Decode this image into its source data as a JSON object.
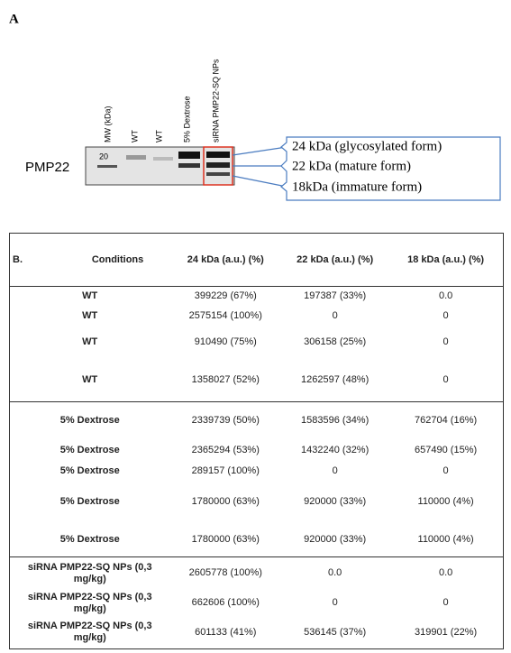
{
  "panel_a": {
    "label": "A",
    "protein": "PMP22",
    "marker": "20",
    "lanes": [
      "MW (kDa)",
      "WT",
      "WT",
      "5% Dextrose",
      "siRNA PMP22-SQ NPs"
    ],
    "annotations": [
      "24 kDa (glycosylated form)",
      "22 kDa (mature form)",
      "18kDa (immature form)"
    ]
  },
  "table": {
    "headers": [
      "B.",
      "Conditions",
      "24 kDa (a.u.) (%)",
      "22 kDa (a.u.) (%)",
      "18 kDa (a.u.) (%)"
    ],
    "groups": [
      {
        "rows": [
          [
            "WT",
            "399229 (67%)",
            "197387 (33%)",
            "0.0"
          ],
          [
            "WT",
            "2575154 (100%)",
            "0",
            "0"
          ],
          [
            "WT",
            "910490 (75%)",
            "306158 (25%)",
            "0"
          ],
          [
            "WT",
            "1358027 (52%)",
            "1262597 (48%)",
            "0"
          ]
        ]
      },
      {
        "rows": [
          [
            "5% Dextrose",
            "2339739 (50%)",
            "1583596 (34%)",
            "762704 (16%)"
          ],
          [
            "5% Dextrose",
            "2365294 (53%)",
            "1432240 (32%)",
            "657490 (15%)"
          ],
          [
            "5% Dextrose",
            "289157 (100%)",
            "0",
            "0"
          ],
          [
            "5% Dextrose",
            "1780000 (63%)",
            "920000 (33%)",
            "110000 (4%)"
          ],
          [
            "5% Dextrose",
            "1780000 (63%)",
            "920000 (33%)",
            "110000 (4%)"
          ]
        ]
      },
      {
        "rows": [
          [
            "siRNA PMP22-SQ NPs (0,3 mg/kg)",
            "2605778 (100%)",
            "0.0",
            "0.0"
          ],
          [
            "siRNA PMP22-SQ NPs (0,3 mg/kg)",
            "662606 (100%)",
            "0",
            "0"
          ],
          [
            "siRNA PMP22-SQ NPs (0,3 mg/kg)",
            "601133 (41%)",
            "536145 (37%)",
            "319901 (22%)"
          ]
        ]
      }
    ]
  }
}
